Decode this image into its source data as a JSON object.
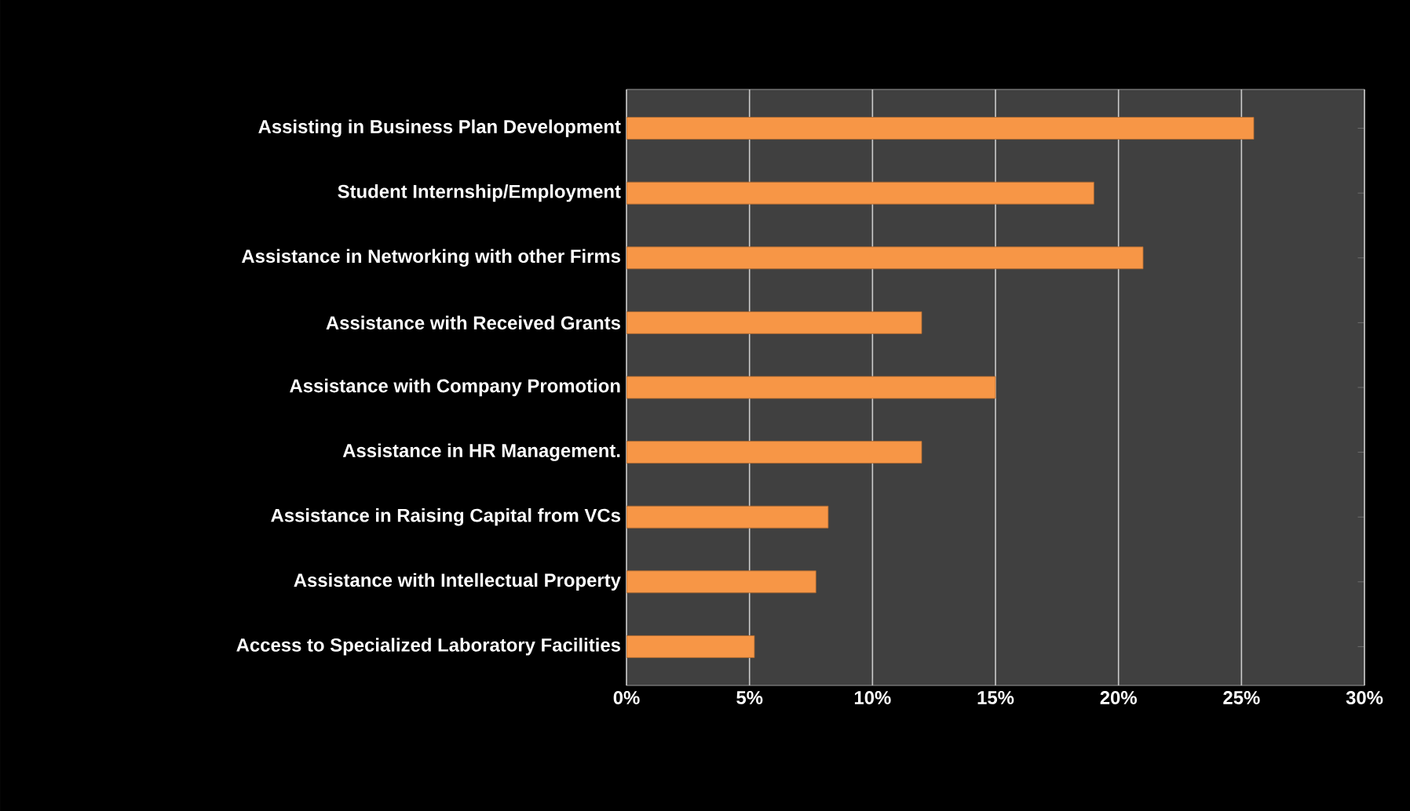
{
  "chart_data": {
    "type": "bar",
    "orientation": "horizontal",
    "categories": [
      "Assisting in Business Plan Development",
      "Student Internship/Employment",
      "Assistance in Networking with other Firms",
      "Assistance with Received Grants",
      "Assistance with Company Promotion",
      "Assistance in HR Management.",
      "Assistance in Raising Capital from VCs",
      "Assistance with Intellectual Property",
      "Access to Specialized Laboratory Facilities"
    ],
    "values": [
      25.5,
      19,
      21,
      12,
      15,
      12,
      8.2,
      7.7,
      5.2
    ],
    "color": "#f79646",
    "xlim": [
      0,
      30
    ],
    "xticks": [
      {
        "value": 0,
        "label": "0%"
      },
      {
        "value": 5,
        "label": "5%"
      },
      {
        "value": 10,
        "label": "10%"
      },
      {
        "value": 15,
        "label": "15%"
      },
      {
        "value": 20,
        "label": "20%"
      },
      {
        "value": 25,
        "label": "25%"
      },
      {
        "value": 30,
        "label": "30%"
      }
    ],
    "grid": "x"
  }
}
